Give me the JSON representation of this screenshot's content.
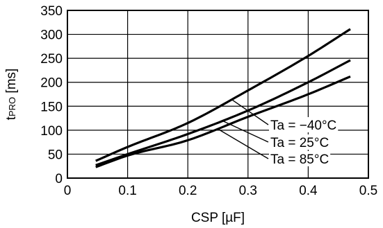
{
  "chart_data": {
    "type": "line",
    "title": "",
    "xlabel": "CSP [µF]",
    "ylabel": {
      "main": "t",
      "sub": "PRO",
      "unit": " [ms]"
    },
    "xlim": [
      0,
      0.5
    ],
    "ylim": [
      0,
      350
    ],
    "x_ticks": [
      0,
      0.1,
      0.2,
      0.3,
      0.4,
      0.5
    ],
    "x_tick_labels": [
      "0",
      "0.1",
      "0.2",
      "0.3",
      "0.4",
      "0.5"
    ],
    "y_ticks": [
      0,
      50,
      100,
      150,
      200,
      250,
      300,
      350
    ],
    "y_tick_labels": [
      "0",
      "50",
      "100",
      "150",
      "200",
      "250",
      "300",
      "350"
    ],
    "grid": true,
    "series": [
      {
        "name": "Ta = −40°C",
        "x": [
          0.047,
          0.1,
          0.2,
          0.3,
          0.4,
          0.47
        ],
        "y": [
          36,
          65,
          115,
          183,
          255,
          311
        ]
      },
      {
        "name": "Ta = 25°C",
        "x": [
          0.047,
          0.1,
          0.2,
          0.3,
          0.4,
          0.47
        ],
        "y": [
          27,
          50,
          92,
          141,
          200,
          246
        ]
      },
      {
        "name": "Ta = 85°C",
        "x": [
          0.047,
          0.1,
          0.2,
          0.3,
          0.4,
          0.47
        ],
        "y": [
          23,
          47,
          79,
          128,
          175,
          212
        ]
      }
    ],
    "annotations": [
      {
        "text": "Ta = −40°C",
        "series": 0,
        "at_x": 0.273
      },
      {
        "text": "Ta = 25°C",
        "series": 1,
        "at_x": 0.258
      },
      {
        "text": "Ta = 85°C",
        "series": 2,
        "at_x": 0.25
      }
    ]
  }
}
